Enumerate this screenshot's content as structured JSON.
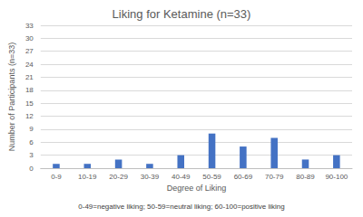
{
  "chart_data": {
    "type": "bar",
    "title": "Liking for Ketamine (n=33)",
    "x_label": "Degree of Liking",
    "y_label": "Number of Participants (n=33)",
    "categories": [
      "0-9",
      "10-19",
      "20-29",
      "30-39",
      "40-49",
      "50-59",
      "60-69",
      "70-79",
      "80-89",
      "90-100"
    ],
    "values": [
      1,
      1,
      2,
      1,
      3,
      8,
      5,
      7,
      2,
      3
    ],
    "color": "#4472c4",
    "ylim": [
      0,
      33
    ],
    "yticks": [
      0,
      3,
      6,
      9,
      12,
      15,
      18,
      21,
      24,
      27,
      30,
      33
    ],
    "grid": true,
    "annotations": [
      "0-49=negative liking; 50-59=neutral liking; 60-100=positive liking"
    ]
  }
}
